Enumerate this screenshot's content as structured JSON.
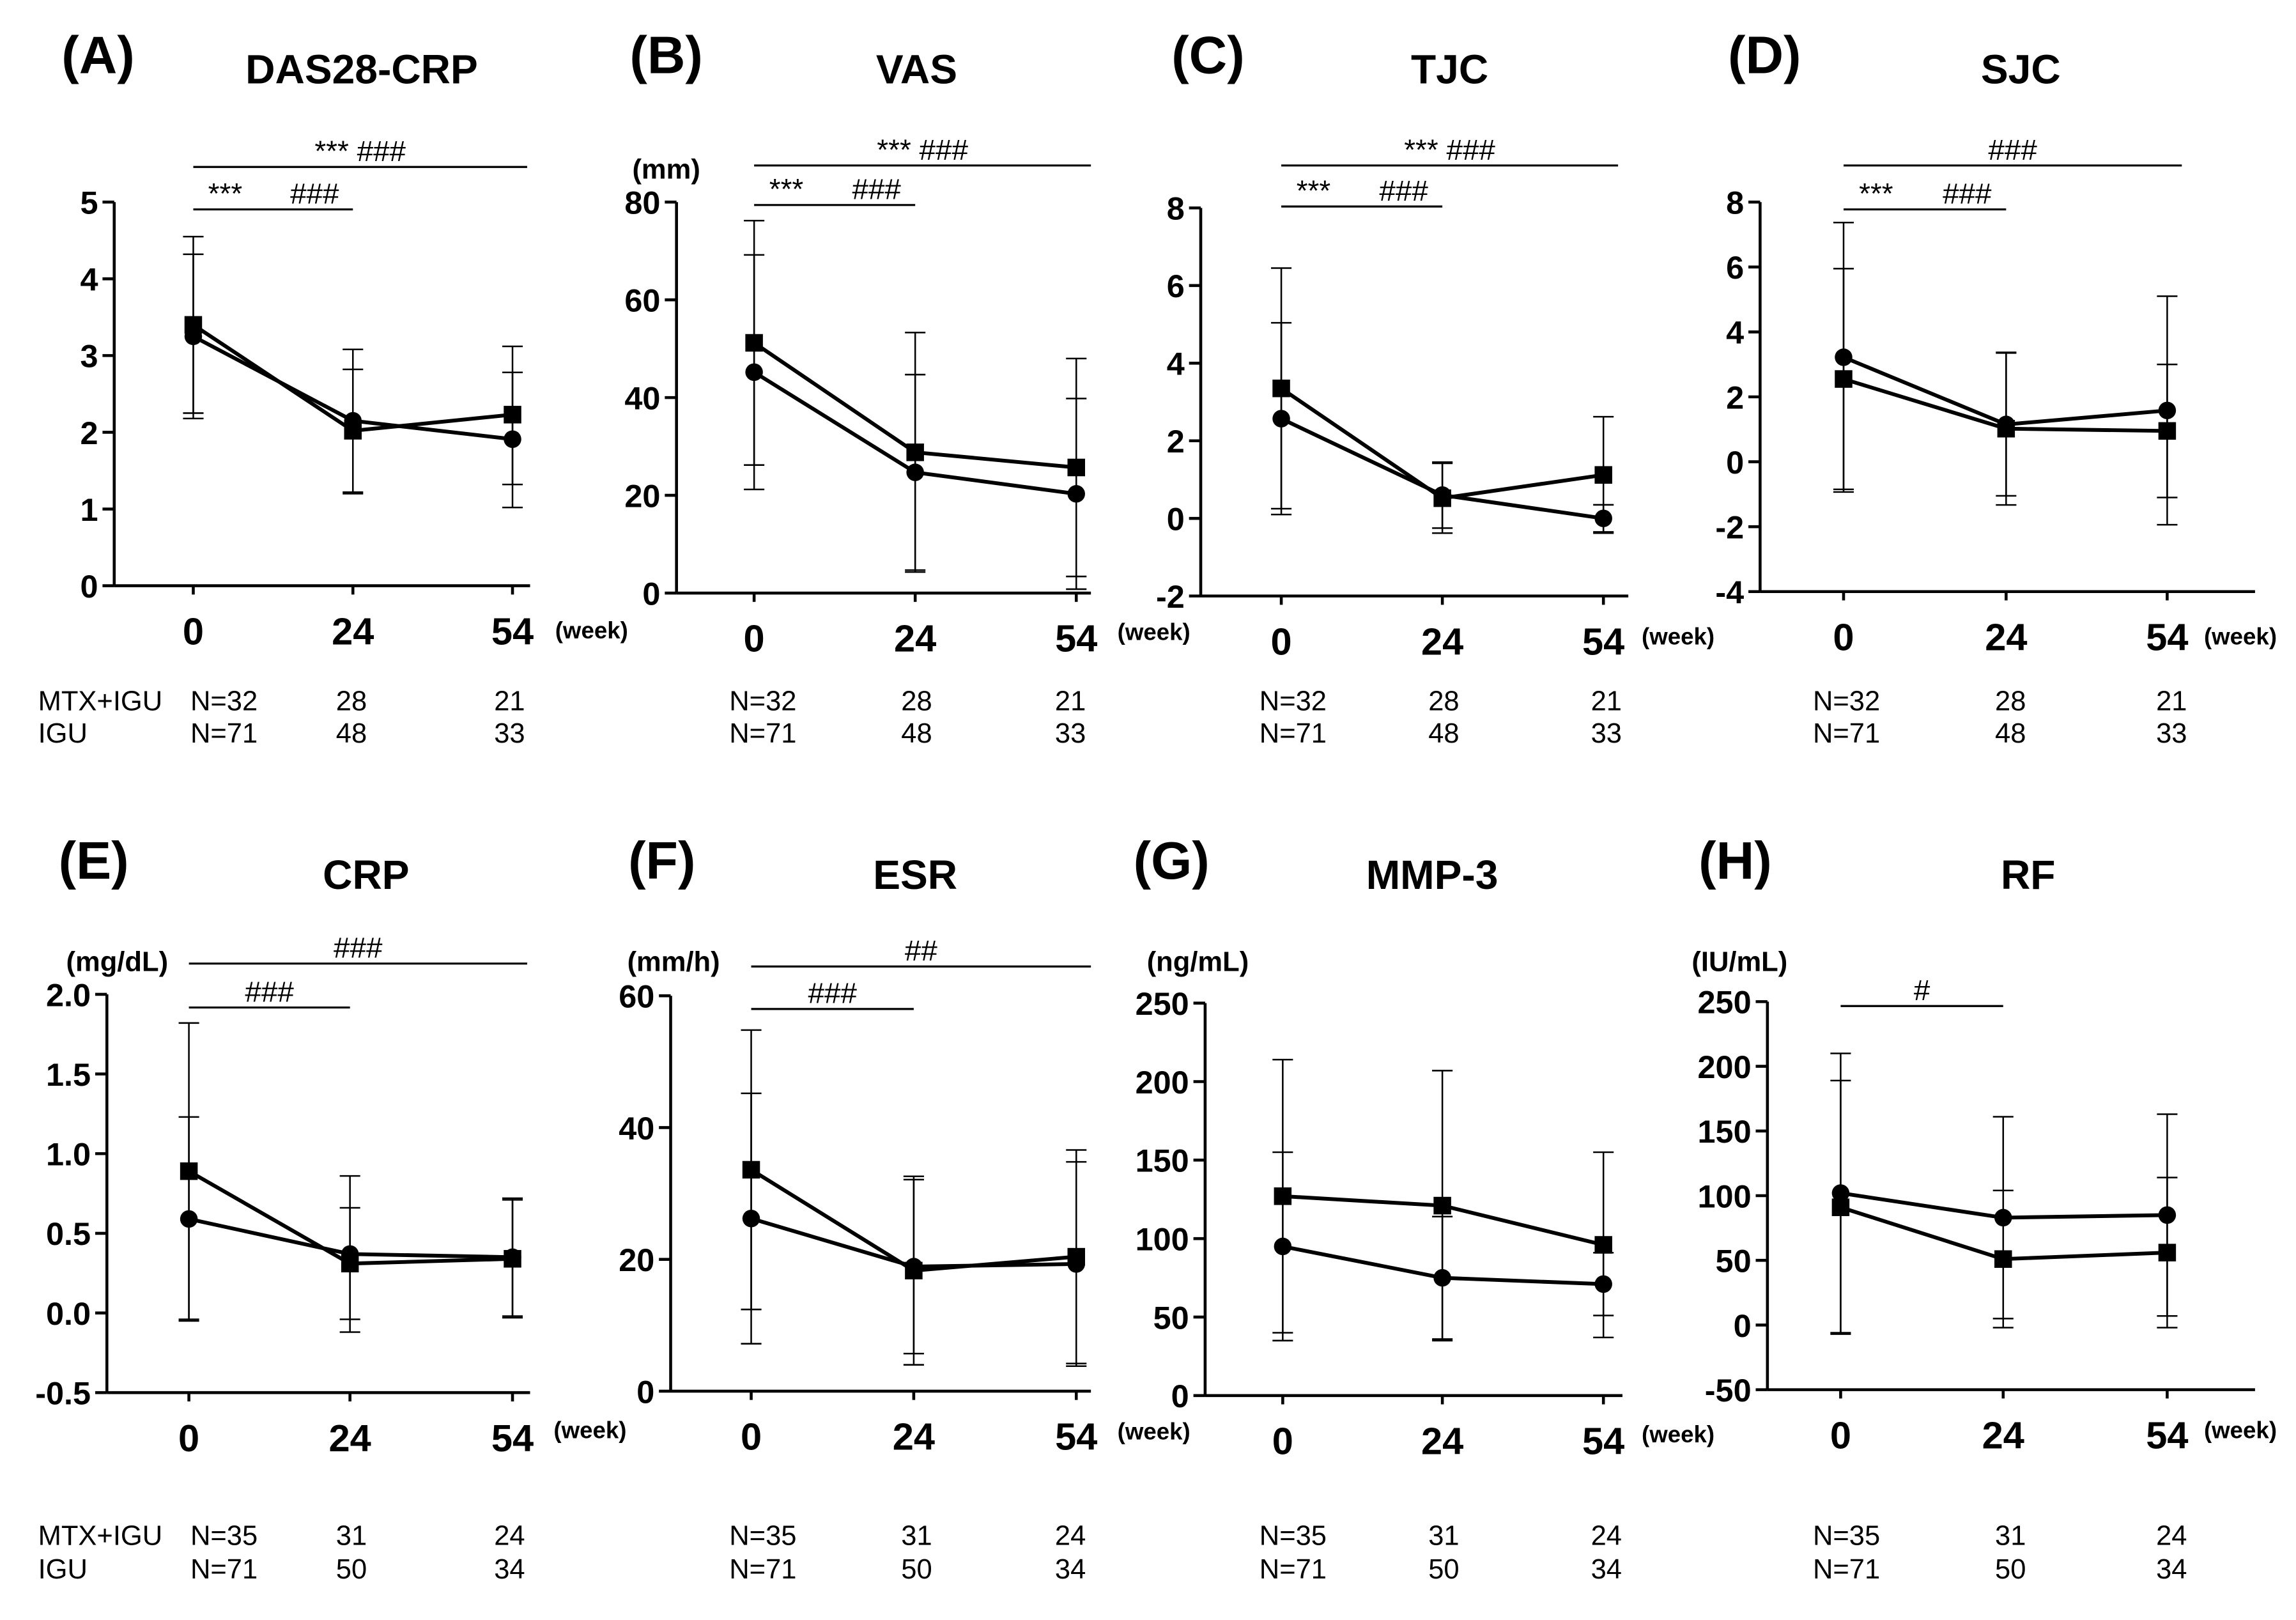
{
  "chart_data": [
    {
      "panel": "(A)",
      "type": "line",
      "title": "DAS28-CRP",
      "categories": [
        "0",
        "24",
        "54"
      ],
      "xlabel": "(week)",
      "ylim": [
        0,
        5
      ],
      "y_ticks": [
        0,
        1,
        2,
        3,
        4,
        5
      ],
      "y_tick_labels": [
        "0",
        "1",
        "2",
        "3",
        "4",
        "5"
      ],
      "series": [
        {
          "marker": "square",
          "values": [
            3.4,
            2.02,
            2.23
          ],
          "error_upper": [
            4.55,
            2.82,
            3.12
          ],
          "error_lower": [
            2.25,
            1.22,
            1.32
          ]
        },
        {
          "marker": "circle",
          "values": [
            3.25,
            2.15,
            1.91
          ],
          "error_upper": [
            4.32,
            3.08,
            2.78
          ],
          "error_lower": [
            2.18,
            1.2,
            1.02
          ]
        }
      ],
      "significance": [
        {
          "from": 0,
          "to": 54,
          "labels": [
            "*** ###"
          ]
        },
        {
          "from": 0,
          "to": 24,
          "labels": [
            "***",
            "###"
          ]
        }
      ],
      "n_table": [
        {
          "group": "MTX+IGU",
          "values": [
            "N=32",
            "28",
            "21"
          ]
        },
        {
          "group": "IGU",
          "values": [
            "N=71",
            "48",
            "33"
          ]
        }
      ]
    },
    {
      "panel": "(B)",
      "type": "line",
      "title": "VAS",
      "ylabel": "(mm)",
      "categories": [
        "0",
        "24",
        "54"
      ],
      "xlabel": "(week)",
      "ylim": [
        0,
        80
      ],
      "y_ticks": [
        0,
        20,
        40,
        60,
        80
      ],
      "y_tick_labels": [
        "0",
        "20",
        "40",
        "60",
        "80"
      ],
      "series": [
        {
          "marker": "square",
          "values": [
            51.2,
            28.8,
            25.7
          ],
          "error_upper": [
            76.2,
            53.3,
            48.0
          ],
          "error_lower": [
            26.2,
            4.3,
            3.4
          ]
        },
        {
          "marker": "circle",
          "values": [
            45.2,
            24.7,
            20.3
          ],
          "error_upper": [
            69.2,
            44.7,
            39.8
          ],
          "error_lower": [
            21.2,
            4.7,
            0.8
          ]
        }
      ],
      "significance": [
        {
          "from": 0,
          "to": 54,
          "labels": [
            "*** ###"
          ]
        },
        {
          "from": 0,
          "to": 24,
          "labels": [
            "***",
            "###"
          ]
        }
      ],
      "n_table": [
        {
          "values": [
            "N=32",
            "28",
            "21"
          ]
        },
        {
          "values": [
            "N=71",
            "48",
            "33"
          ]
        }
      ]
    },
    {
      "panel": "(C)",
      "type": "line",
      "title": "TJC",
      "categories": [
        "0",
        "24",
        "54"
      ],
      "xlabel": "(week)",
      "ylim": [
        -2,
        8
      ],
      "y_ticks": [
        -2,
        0,
        2,
        4,
        6,
        8
      ],
      "y_tick_labels": [
        "-2",
        "0",
        "2",
        "4",
        "6",
        "8"
      ],
      "series": [
        {
          "marker": "square",
          "values": [
            3.35,
            0.52,
            1.12
          ],
          "error_upper": [
            6.45,
            1.42,
            2.62
          ],
          "error_lower": [
            0.25,
            -0.38,
            -0.38
          ]
        },
        {
          "marker": "circle",
          "values": [
            2.57,
            0.6,
            0.0
          ],
          "error_upper": [
            5.04,
            1.45,
            0.35
          ],
          "error_lower": [
            0.1,
            -0.25,
            -0.35
          ]
        }
      ],
      "significance": [
        {
          "from": 0,
          "to": 54,
          "labels": [
            "*** ###"
          ]
        },
        {
          "from": 0,
          "to": 24,
          "labels": [
            "***",
            "###"
          ]
        }
      ],
      "n_table": [
        {
          "values": [
            "N=32",
            "28",
            "21"
          ]
        },
        {
          "values": [
            "N=71",
            "48",
            "33"
          ]
        }
      ]
    },
    {
      "panel": "(D)",
      "type": "line",
      "title": "SJC",
      "categories": [
        "0",
        "24",
        "54"
      ],
      "xlabel": "(week)",
      "ylim": [
        -4,
        8
      ],
      "y_ticks": [
        -4,
        -2,
        0,
        2,
        4,
        6,
        8
      ],
      "y_tick_labels": [
        "-4",
        "-2",
        "0",
        "2",
        "4",
        "6",
        "8"
      ],
      "series": [
        {
          "marker": "square",
          "values": [
            2.55,
            1.02,
            0.95
          ],
          "error_upper": [
            5.95,
            3.37,
            3.0
          ],
          "error_lower": [
            -0.85,
            -1.33,
            -1.1
          ]
        },
        {
          "marker": "circle",
          "values": [
            3.22,
            1.15,
            1.58
          ],
          "error_upper": [
            7.37,
            3.35,
            5.1
          ],
          "error_lower": [
            -0.93,
            -1.05,
            -1.94
          ]
        }
      ],
      "significance": [
        {
          "from": 0,
          "to": 54,
          "labels": [
            "###"
          ]
        },
        {
          "from": 0,
          "to": 24,
          "labels": [
            "***",
            "###"
          ]
        }
      ],
      "n_table": [
        {
          "values": [
            "N=32",
            "28",
            "21"
          ]
        },
        {
          "values": [
            "N=71",
            "48",
            "33"
          ]
        }
      ]
    },
    {
      "panel": "(E)",
      "type": "line",
      "title": "CRP",
      "ylabel": "(mg/dL)",
      "categories": [
        "0",
        "24",
        "54"
      ],
      "xlabel": "(week)",
      "ylim": [
        -0.5,
        2.0
      ],
      "y_ticks": [
        -0.5,
        0,
        0.5,
        1.0,
        1.5,
        2.0
      ],
      "y_tick_labels": [
        "-0.5",
        "0.0",
        "0.5",
        "1.0",
        "1.5",
        "2.0"
      ],
      "series": [
        {
          "marker": "square",
          "values": [
            0.89,
            0.31,
            0.34
          ],
          "error_upper": [
            1.82,
            0.66,
            0.71
          ],
          "error_lower": [
            -0.04,
            -0.04,
            -0.03
          ]
        },
        {
          "marker": "circle",
          "values": [
            0.59,
            0.37,
            0.35
          ],
          "error_upper": [
            1.23,
            0.86,
            0.72
          ],
          "error_lower": [
            -0.05,
            -0.12,
            -0.02
          ]
        }
      ],
      "significance": [
        {
          "from": 0,
          "to": 54,
          "labels": [
            "###"
          ]
        },
        {
          "from": 0,
          "to": 24,
          "labels": [
            "###"
          ]
        }
      ],
      "n_table": [
        {
          "group": "MTX+IGU",
          "values": [
            "N=35",
            "31",
            "24"
          ]
        },
        {
          "group": "IGU",
          "values": [
            "N=71",
            "50",
            "34"
          ]
        }
      ]
    },
    {
      "panel": "(F)",
      "type": "line",
      "title": "ESR",
      "ylabel": "(mm/h)",
      "categories": [
        "0",
        "24",
        "54"
      ],
      "xlabel": "(week)",
      "ylim": [
        0,
        60
      ],
      "y_ticks": [
        0,
        20,
        40,
        60
      ],
      "y_tick_labels": [
        "0",
        "20",
        "40",
        "60"
      ],
      "series": [
        {
          "marker": "square",
          "values": [
            33.6,
            18.3,
            20.4
          ],
          "error_upper": [
            54.8,
            32.6,
            36.6
          ],
          "error_lower": [
            12.4,
            4.0,
            4.2
          ]
        },
        {
          "marker": "circle",
          "values": [
            26.2,
            18.9,
            19.3
          ],
          "error_upper": [
            45.2,
            32.1,
            34.8
          ],
          "error_lower": [
            7.2,
            5.7,
            3.8
          ]
        }
      ],
      "significance": [
        {
          "from": 0,
          "to": 54,
          "labels": [
            "##"
          ]
        },
        {
          "from": 0,
          "to": 24,
          "labels": [
            "###"
          ]
        }
      ],
      "n_table": [
        {
          "values": [
            "N=35",
            "31",
            "24"
          ]
        },
        {
          "values": [
            "N=71",
            "50",
            "34"
          ]
        }
      ]
    },
    {
      "panel": "(G)",
      "type": "line",
      "title": "MMP-3",
      "ylabel": "(ng/mL)",
      "categories": [
        "0",
        "24",
        "54"
      ],
      "xlabel": "(week)",
      "ylim": [
        0,
        250
      ],
      "y_ticks": [
        0,
        50,
        100,
        150,
        200,
        250
      ],
      "y_tick_labels": [
        "0",
        "50",
        "100",
        "150",
        "200",
        "250"
      ],
      "series": [
        {
          "marker": "square",
          "values": [
            127,
            121,
            96
          ],
          "error_upper": [
            214,
            207,
            155
          ],
          "error_lower": [
            40,
            35,
            37
          ]
        },
        {
          "marker": "circle",
          "values": [
            95,
            75,
            71
          ],
          "error_upper": [
            155,
            114,
            91
          ],
          "error_lower": [
            35,
            36,
            51
          ]
        }
      ],
      "significance": [],
      "n_table": [
        {
          "values": [
            "N=35",
            "31",
            "24"
          ]
        },
        {
          "values": [
            "N=71",
            "50",
            "34"
          ]
        }
      ]
    },
    {
      "panel": "(H)",
      "type": "line",
      "title": "RF",
      "ylabel": "(IU/mL)",
      "categories": [
        "0",
        "24",
        "54"
      ],
      "xlabel": "(week)",
      "ylim": [
        -50,
        250
      ],
      "y_ticks": [
        -50,
        0,
        50,
        100,
        150,
        200,
        250
      ],
      "y_tick_labels": [
        "-50",
        "0",
        "50",
        "100",
        "150",
        "200",
        "250"
      ],
      "series": [
        {
          "marker": "square",
          "values": [
            91,
            51,
            56
          ],
          "error_upper": [
            189,
            104,
            114
          ],
          "error_lower": [
            -7,
            -2,
            -2
          ]
        },
        {
          "marker": "circle",
          "values": [
            102,
            83,
            85
          ],
          "error_upper": [
            210,
            161,
            163
          ],
          "error_lower": [
            -6,
            5,
            7
          ]
        }
      ],
      "significance": [
        {
          "from": 0,
          "to": 24,
          "labels": [
            "#"
          ]
        }
      ],
      "n_table": [
        {
          "values": [
            "N=35",
            "31",
            "24"
          ]
        },
        {
          "values": [
            "N=71",
            "50",
            "34"
          ]
        }
      ]
    }
  ]
}
